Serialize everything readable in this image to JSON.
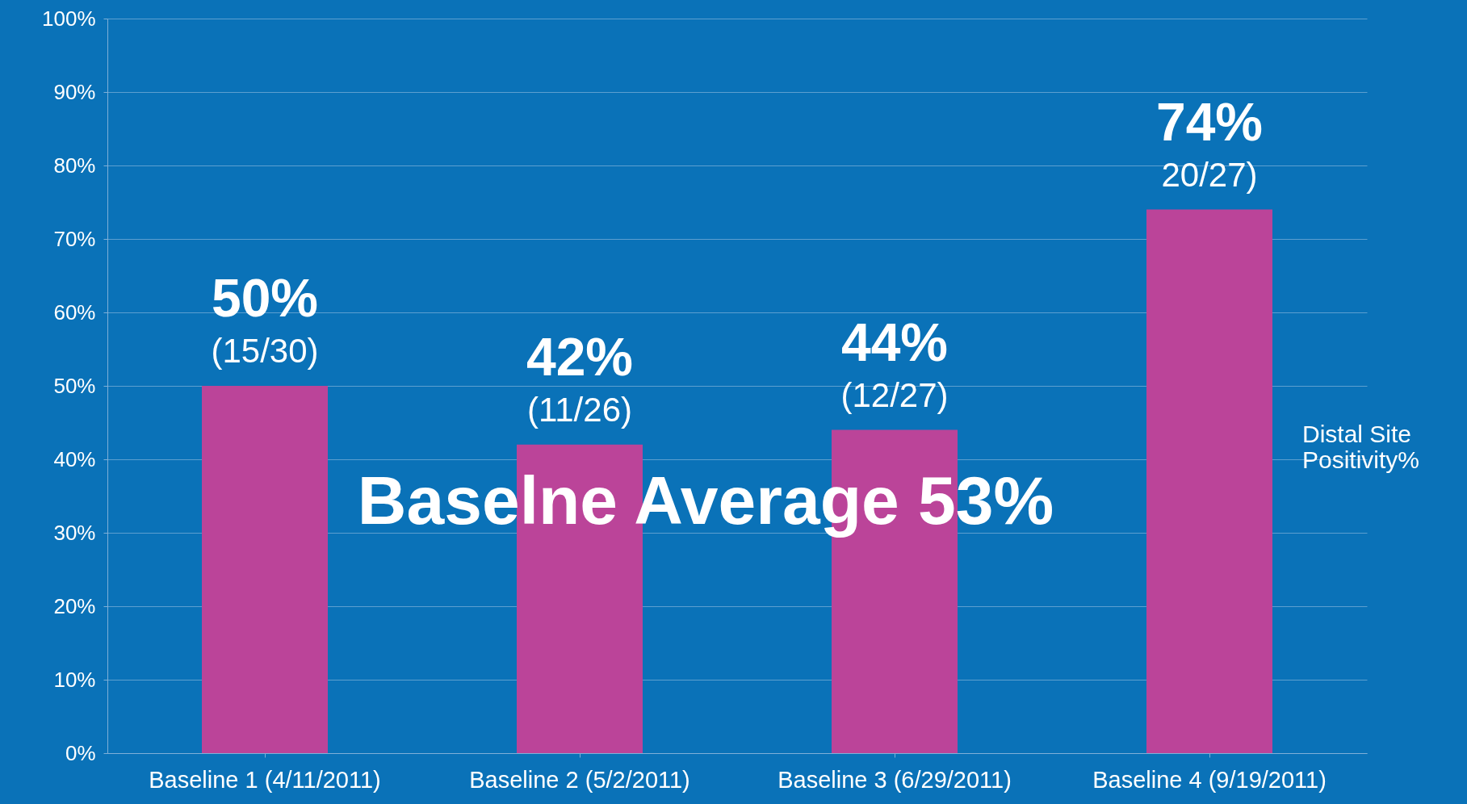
{
  "chart_data": {
    "type": "bar",
    "categories": [
      "Baseline 1 (4/11/2011)",
      "Baseline 2 (5/2/2011)",
      "Baseline 3 (6/29/2011)",
      "Baseline 4 (9/19/2011)"
    ],
    "series": [
      {
        "name": "Distal Site Positivity%",
        "color": "#bb4499",
        "values": [
          50,
          42,
          44,
          74
        ]
      }
    ],
    "value_labels": [
      "50%\n(15/30)",
      "42%\n(11/26)",
      "44%\n(12/27)",
      "74%\n20/27)"
    ],
    "ylim": [
      0,
      100
    ],
    "yticks": [
      {
        "value": 0,
        "label": "0%"
      },
      {
        "value": 10,
        "label": "10%"
      },
      {
        "value": 20,
        "label": "20%"
      },
      {
        "value": 30,
        "label": "30%"
      },
      {
        "value": 40,
        "label": "40%"
      },
      {
        "value": 50,
        "label": "50%"
      },
      {
        "value": 60,
        "label": "60%"
      },
      {
        "value": 70,
        "label": "70%"
      },
      {
        "value": 80,
        "label": "80%"
      },
      {
        "value": 90,
        "label": "90%"
      },
      {
        "value": 100,
        "label": "100%"
      }
    ],
    "annotations": [
      "Baselne Average 53%"
    ],
    "grid": "y",
    "legend": "right"
  }
}
